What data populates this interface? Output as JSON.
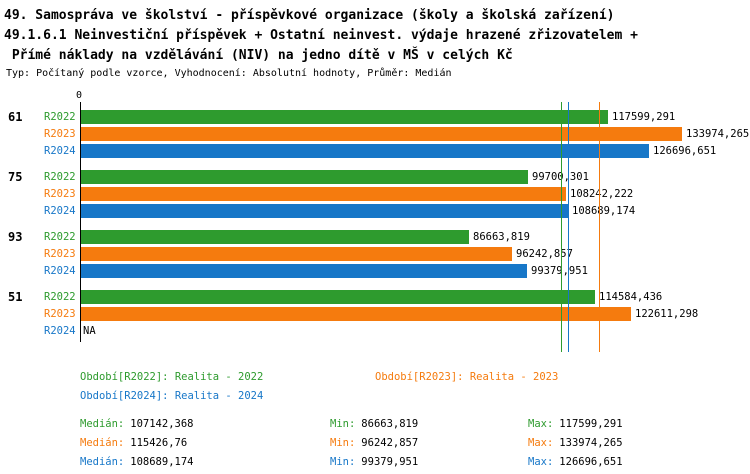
{
  "title": {
    "line1": "49. Samospráva ve školství - příspěvkové organizace (školy a školská zařízení)",
    "line2": "49.1.6.1 Neinvestiční příspěvek + Ostatní neinvest. výdaje hrazené zřizovatelem +",
    "line3": " Přímé náklady na vzdělávání (NIV) na jedno dítě v MŠ v celých Kč",
    "subtitle": "Typ: Počítaný podle vzorce, Vyhodnocení: Absolutní hodnoty, Průměr: Medián"
  },
  "colors": {
    "R2022": "#2e9b2e",
    "R2023": "#f57b0e",
    "R2024": "#1777c8",
    "axis": "#000000",
    "text": "#000000"
  },
  "chart_data": {
    "type": "bar",
    "orientation": "horizontal",
    "value_axis_origin_label": "0",
    "xlim": [
      0,
      140000
    ],
    "grid": false,
    "series_names": [
      "R2022",
      "R2023",
      "R2024"
    ],
    "groups": [
      {
        "label": "61",
        "bars": [
          {
            "series": "R2022",
            "value": 117599.291,
            "value_label": "117599,291"
          },
          {
            "series": "R2023",
            "value": 133974.265,
            "value_label": "133974,265"
          },
          {
            "series": "R2024",
            "value": 126696.651,
            "value_label": "126696,651"
          }
        ]
      },
      {
        "label": "75",
        "bars": [
          {
            "series": "R2022",
            "value": 99700.301,
            "value_label": "99700,301"
          },
          {
            "series": "R2023",
            "value": 108242.222,
            "value_label": "108242,222"
          },
          {
            "series": "R2024",
            "value": 108689.174,
            "value_label": "108689,174"
          }
        ]
      },
      {
        "label": "93",
        "bars": [
          {
            "series": "R2022",
            "value": 86663.819,
            "value_label": "86663,819"
          },
          {
            "series": "R2023",
            "value": 96242.857,
            "value_label": "96242,857"
          },
          {
            "series": "R2024",
            "value": 99379.951,
            "value_label": "99379,951"
          }
        ]
      },
      {
        "label": "51",
        "bars": [
          {
            "series": "R2022",
            "value": 114584.436,
            "value_label": "114584,436"
          },
          {
            "series": "R2023",
            "value": 122611.298,
            "value_label": "122611,298"
          },
          {
            "series": "R2024",
            "value": null,
            "value_label": "NA"
          }
        ]
      }
    ],
    "median_lines": [
      {
        "series": "R2022",
        "value": 107142.368
      },
      {
        "series": "R2024",
        "value": 108689.174
      },
      {
        "series": "R2023",
        "value": 115426.76
      }
    ]
  },
  "legend": {
    "items": [
      {
        "series": "R2022",
        "text": "Období[R2022]: Realita - 2022"
      },
      {
        "series": "R2023",
        "text": "Období[R2023]: Realita - 2023"
      },
      {
        "series": "R2024",
        "text": "Období[R2024]: Realita - 2024"
      }
    ]
  },
  "stats": {
    "rows": [
      {
        "series": "R2022",
        "median_label": "Medián:",
        "median_value": "107142,368",
        "min_label": "Min:",
        "min_value": "86663,819",
        "max_label": "Max:",
        "max_value": "117599,291"
      },
      {
        "series": "R2023",
        "median_label": "Medián:",
        "median_value": "115426,76",
        "min_label": "Min:",
        "min_value": "96242,857",
        "max_label": "Max:",
        "max_value": "133974,265"
      },
      {
        "series": "R2024",
        "median_label": "Medián:",
        "median_value": "108689,174",
        "min_label": "Min:",
        "min_value": "99379,951",
        "max_label": "Max:",
        "max_value": "126696,651"
      }
    ]
  }
}
